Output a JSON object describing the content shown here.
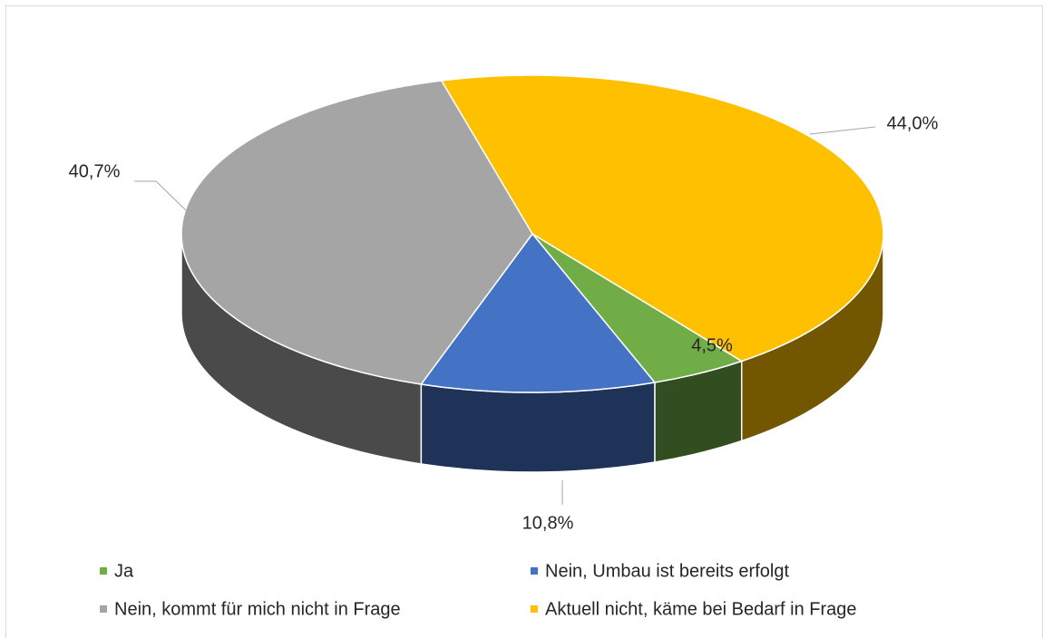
{
  "chart_data": {
    "type": "pie3d",
    "categories": [
      "Ja",
      "Nein, Umbau ist bereits erfolgt",
      "Nein, kommt für mich nicht in Frage",
      "Aktuell nicht, käme bei Bedarf in Frage"
    ],
    "values": [
      4.5,
      10.8,
      40.7,
      44.0
    ],
    "value_labels": [
      "4,5%",
      "10,8%",
      "40,7%",
      "44,0%"
    ],
    "colors": [
      "#70ad47",
      "#4472c4",
      "#a5a5a5",
      "#ffc000"
    ],
    "legend": "bottom"
  }
}
